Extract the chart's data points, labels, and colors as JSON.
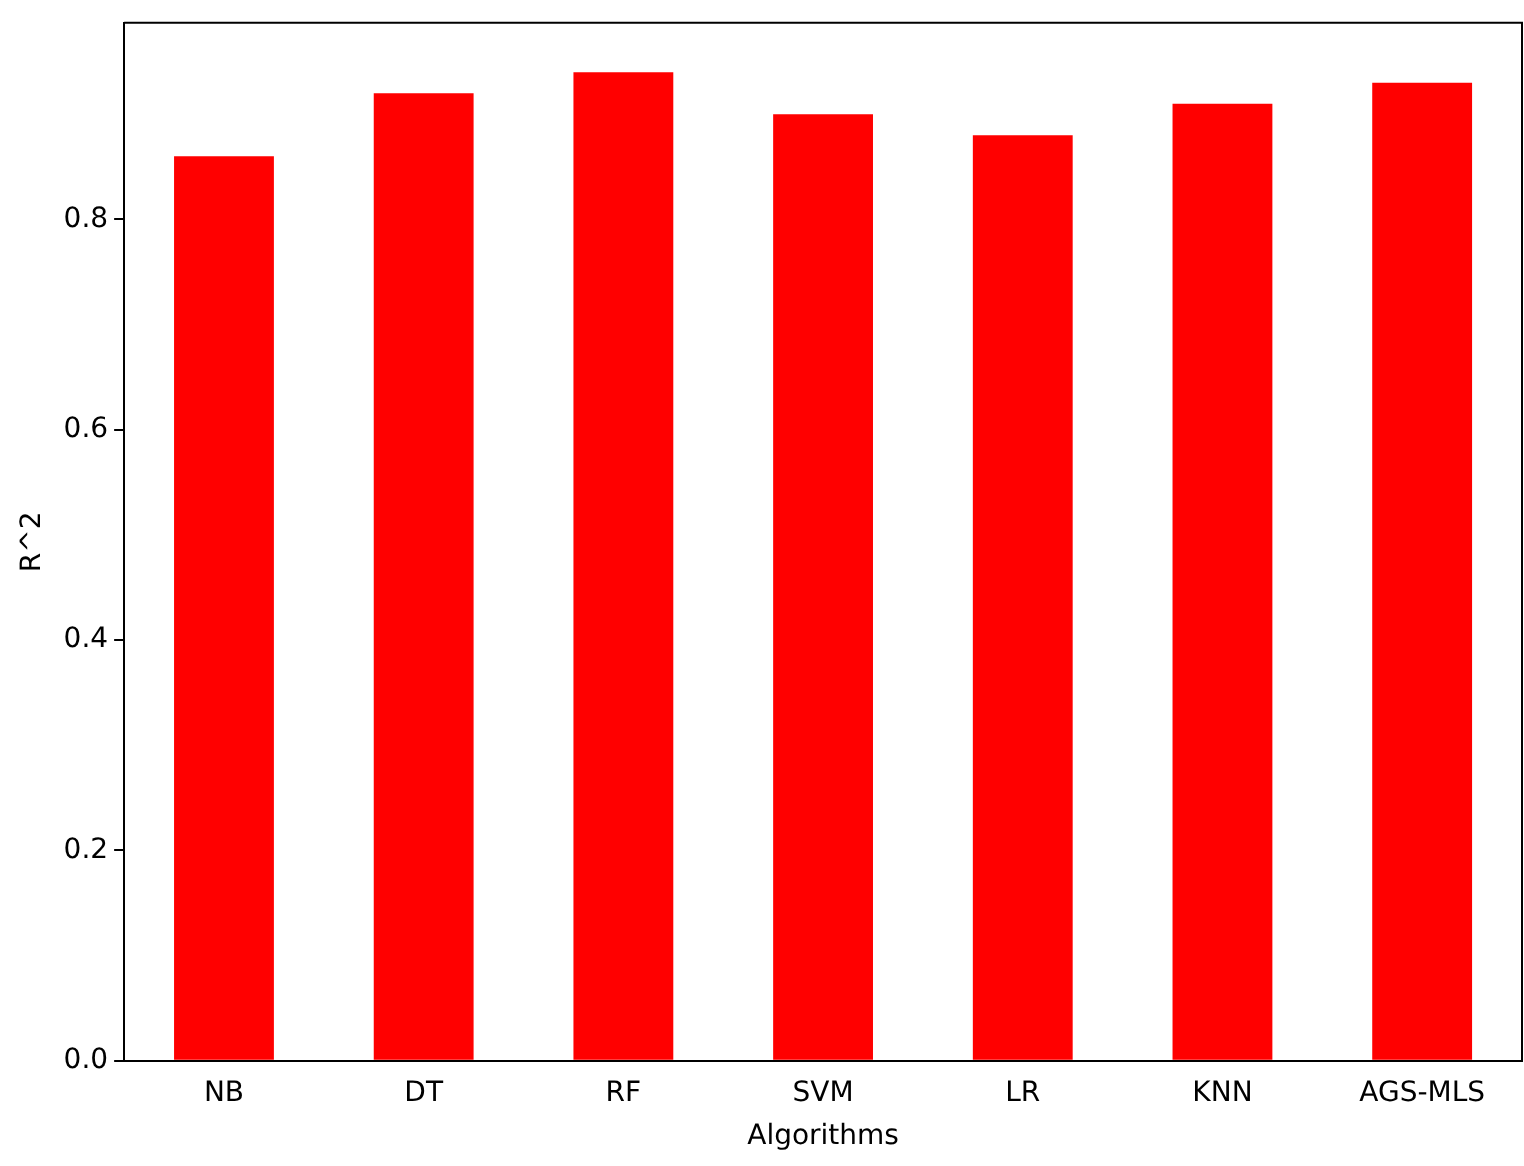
{
  "chart_data": {
    "type": "bar",
    "xlabel": "Algorithms",
    "ylabel": "R^2",
    "categories": [
      "NB",
      "DT",
      "RF",
      "SVM",
      "LR",
      "KNN",
      "AGS-MLS"
    ],
    "values": [
      0.86,
      0.92,
      0.94,
      0.9,
      0.88,
      0.91,
      0.93
    ],
    "color": "#ff0000",
    "ylim": [
      0,
      0.987
    ],
    "yticks": [
      {
        "value": 0,
        "label": "0.0"
      },
      0.2,
      0.4,
      0.6,
      0.8
    ],
    "grid": false
  }
}
